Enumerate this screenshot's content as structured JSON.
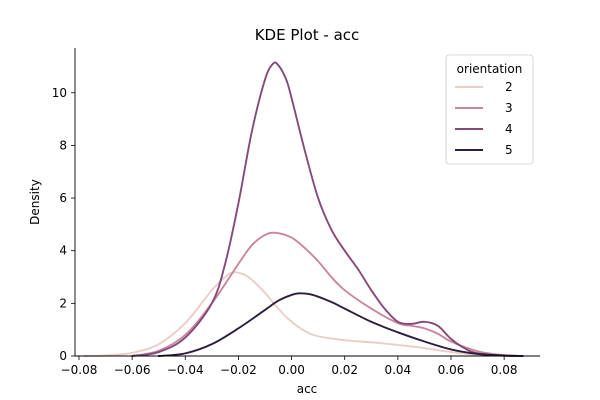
{
  "chart_data": {
    "type": "line",
    "title": "KDE Plot - acc",
    "xlabel": "acc",
    "ylabel": "Density",
    "xlim": [
      -0.0815,
      0.0935
    ],
    "ylim": [
      0,
      11.7
    ],
    "xticks": [
      -0.08,
      -0.06,
      -0.04,
      -0.02,
      0.0,
      0.02,
      0.04,
      0.06,
      0.08
    ],
    "xtick_labels": [
      "−0.08",
      "−0.06",
      "−0.04",
      "−0.02",
      "0.00",
      "0.02",
      "0.04",
      "0.06",
      "0.08"
    ],
    "yticks": [
      0,
      2,
      4,
      6,
      8,
      10
    ],
    "ytick_labels": [
      "0",
      "2",
      "4",
      "6",
      "8",
      "10"
    ],
    "grid": false,
    "legend": {
      "title": "orientation",
      "placement": "top-right"
    },
    "series": [
      {
        "name": "2",
        "color": "#ebcdc7",
        "points": [
          [
            -0.078,
            0.0
          ],
          [
            -0.07,
            0.02
          ],
          [
            -0.06,
            0.12
          ],
          [
            -0.05,
            0.45
          ],
          [
            -0.04,
            1.25
          ],
          [
            -0.03,
            2.5
          ],
          [
            -0.025,
            3.0
          ],
          [
            -0.022,
            3.18
          ],
          [
            -0.018,
            3.1
          ],
          [
            -0.015,
            2.9
          ],
          [
            -0.01,
            2.4
          ],
          [
            -0.005,
            1.8
          ],
          [
            0.0,
            1.3
          ],
          [
            0.005,
            0.95
          ],
          [
            0.01,
            0.75
          ],
          [
            0.02,
            0.6
          ],
          [
            0.03,
            0.52
          ],
          [
            0.04,
            0.42
          ],
          [
            0.05,
            0.3
          ],
          [
            0.06,
            0.15
          ],
          [
            0.07,
            0.05
          ],
          [
            0.08,
            0.01
          ],
          [
            0.087,
            0.0
          ]
        ]
      },
      {
        "name": "3",
        "color": "#c9869a",
        "points": [
          [
            -0.06,
            0.0
          ],
          [
            -0.05,
            0.2
          ],
          [
            -0.04,
            0.8
          ],
          [
            -0.03,
            2.0
          ],
          [
            -0.02,
            3.5
          ],
          [
            -0.015,
            4.2
          ],
          [
            -0.01,
            4.6
          ],
          [
            -0.006,
            4.68
          ],
          [
            0.0,
            4.5
          ],
          [
            0.005,
            4.1
          ],
          [
            0.01,
            3.6
          ],
          [
            0.015,
            3.0
          ],
          [
            0.02,
            2.5
          ],
          [
            0.03,
            1.8
          ],
          [
            0.04,
            1.25
          ],
          [
            0.045,
            1.15
          ],
          [
            0.05,
            1.05
          ],
          [
            0.055,
            0.85
          ],
          [
            0.06,
            0.55
          ],
          [
            0.07,
            0.18
          ],
          [
            0.08,
            0.03
          ],
          [
            0.087,
            0.0
          ]
        ]
      },
      {
        "name": "4",
        "color": "#844b7a",
        "points": [
          [
            -0.06,
            0.0
          ],
          [
            -0.05,
            0.15
          ],
          [
            -0.04,
            0.7
          ],
          [
            -0.03,
            2.0
          ],
          [
            -0.025,
            3.5
          ],
          [
            -0.02,
            5.8
          ],
          [
            -0.015,
            8.5
          ],
          [
            -0.01,
            10.5
          ],
          [
            -0.007,
            11.1
          ],
          [
            -0.005,
            11.05
          ],
          [
            -0.002,
            10.5
          ],
          [
            0.0,
            9.8
          ],
          [
            0.005,
            7.8
          ],
          [
            0.01,
            6.0
          ],
          [
            0.015,
            4.8
          ],
          [
            0.02,
            4.0
          ],
          [
            0.025,
            3.3
          ],
          [
            0.03,
            2.5
          ],
          [
            0.035,
            1.8
          ],
          [
            0.04,
            1.3
          ],
          [
            0.045,
            1.22
          ],
          [
            0.05,
            1.3
          ],
          [
            0.055,
            1.15
          ],
          [
            0.06,
            0.65
          ],
          [
            0.065,
            0.3
          ],
          [
            0.07,
            0.1
          ],
          [
            0.08,
            0.01
          ],
          [
            0.085,
            0.0
          ]
        ]
      },
      {
        "name": "5",
        "color": "#2b1d3f",
        "points": [
          [
            -0.05,
            0.0
          ],
          [
            -0.04,
            0.1
          ],
          [
            -0.03,
            0.45
          ],
          [
            -0.02,
            1.05
          ],
          [
            -0.01,
            1.75
          ],
          [
            -0.005,
            2.1
          ],
          [
            0.0,
            2.32
          ],
          [
            0.003,
            2.38
          ],
          [
            0.008,
            2.32
          ],
          [
            0.015,
            2.05
          ],
          [
            0.02,
            1.8
          ],
          [
            0.03,
            1.3
          ],
          [
            0.04,
            0.9
          ],
          [
            0.05,
            0.55
          ],
          [
            0.06,
            0.25
          ],
          [
            0.07,
            0.08
          ],
          [
            0.08,
            0.02
          ],
          [
            0.087,
            0.0
          ]
        ]
      }
    ]
  }
}
